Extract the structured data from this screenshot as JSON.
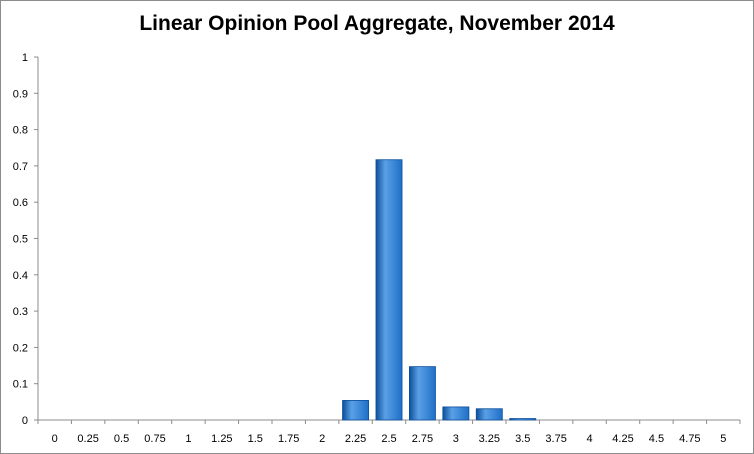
{
  "chart_data": {
    "type": "bar",
    "title": "Linear Opinion Pool Aggregate, November 2014",
    "xlabel": "",
    "ylabel": "",
    "categories": [
      "0",
      "0.25",
      "0.5",
      "0.75",
      "1",
      "1.25",
      "1.5",
      "1.75",
      "2",
      "2.25",
      "2.5",
      "2.75",
      "3",
      "3.25",
      "3.5",
      "3.75",
      "4",
      "4.25",
      "4.5",
      "4.75",
      "5"
    ],
    "values": [
      0,
      0,
      0,
      0,
      0,
      0,
      0,
      0,
      0,
      0.054,
      0.717,
      0.147,
      0.036,
      0.031,
      0.004,
      0,
      0,
      0,
      0,
      0,
      0
    ],
    "ylim": [
      0,
      1
    ],
    "yticks": [
      "0",
      "0.1",
      "0.2",
      "0.3",
      "0.4",
      "0.5",
      "0.6",
      "0.7",
      "0.8",
      "0.9",
      "1"
    ],
    "grid": false,
    "legend": "none",
    "colors": {
      "bar": "#1f6fc8",
      "bar_light": "#5aa0e6",
      "bar_dark": "#0b4f9a",
      "axis": "#8c8c8c"
    }
  }
}
